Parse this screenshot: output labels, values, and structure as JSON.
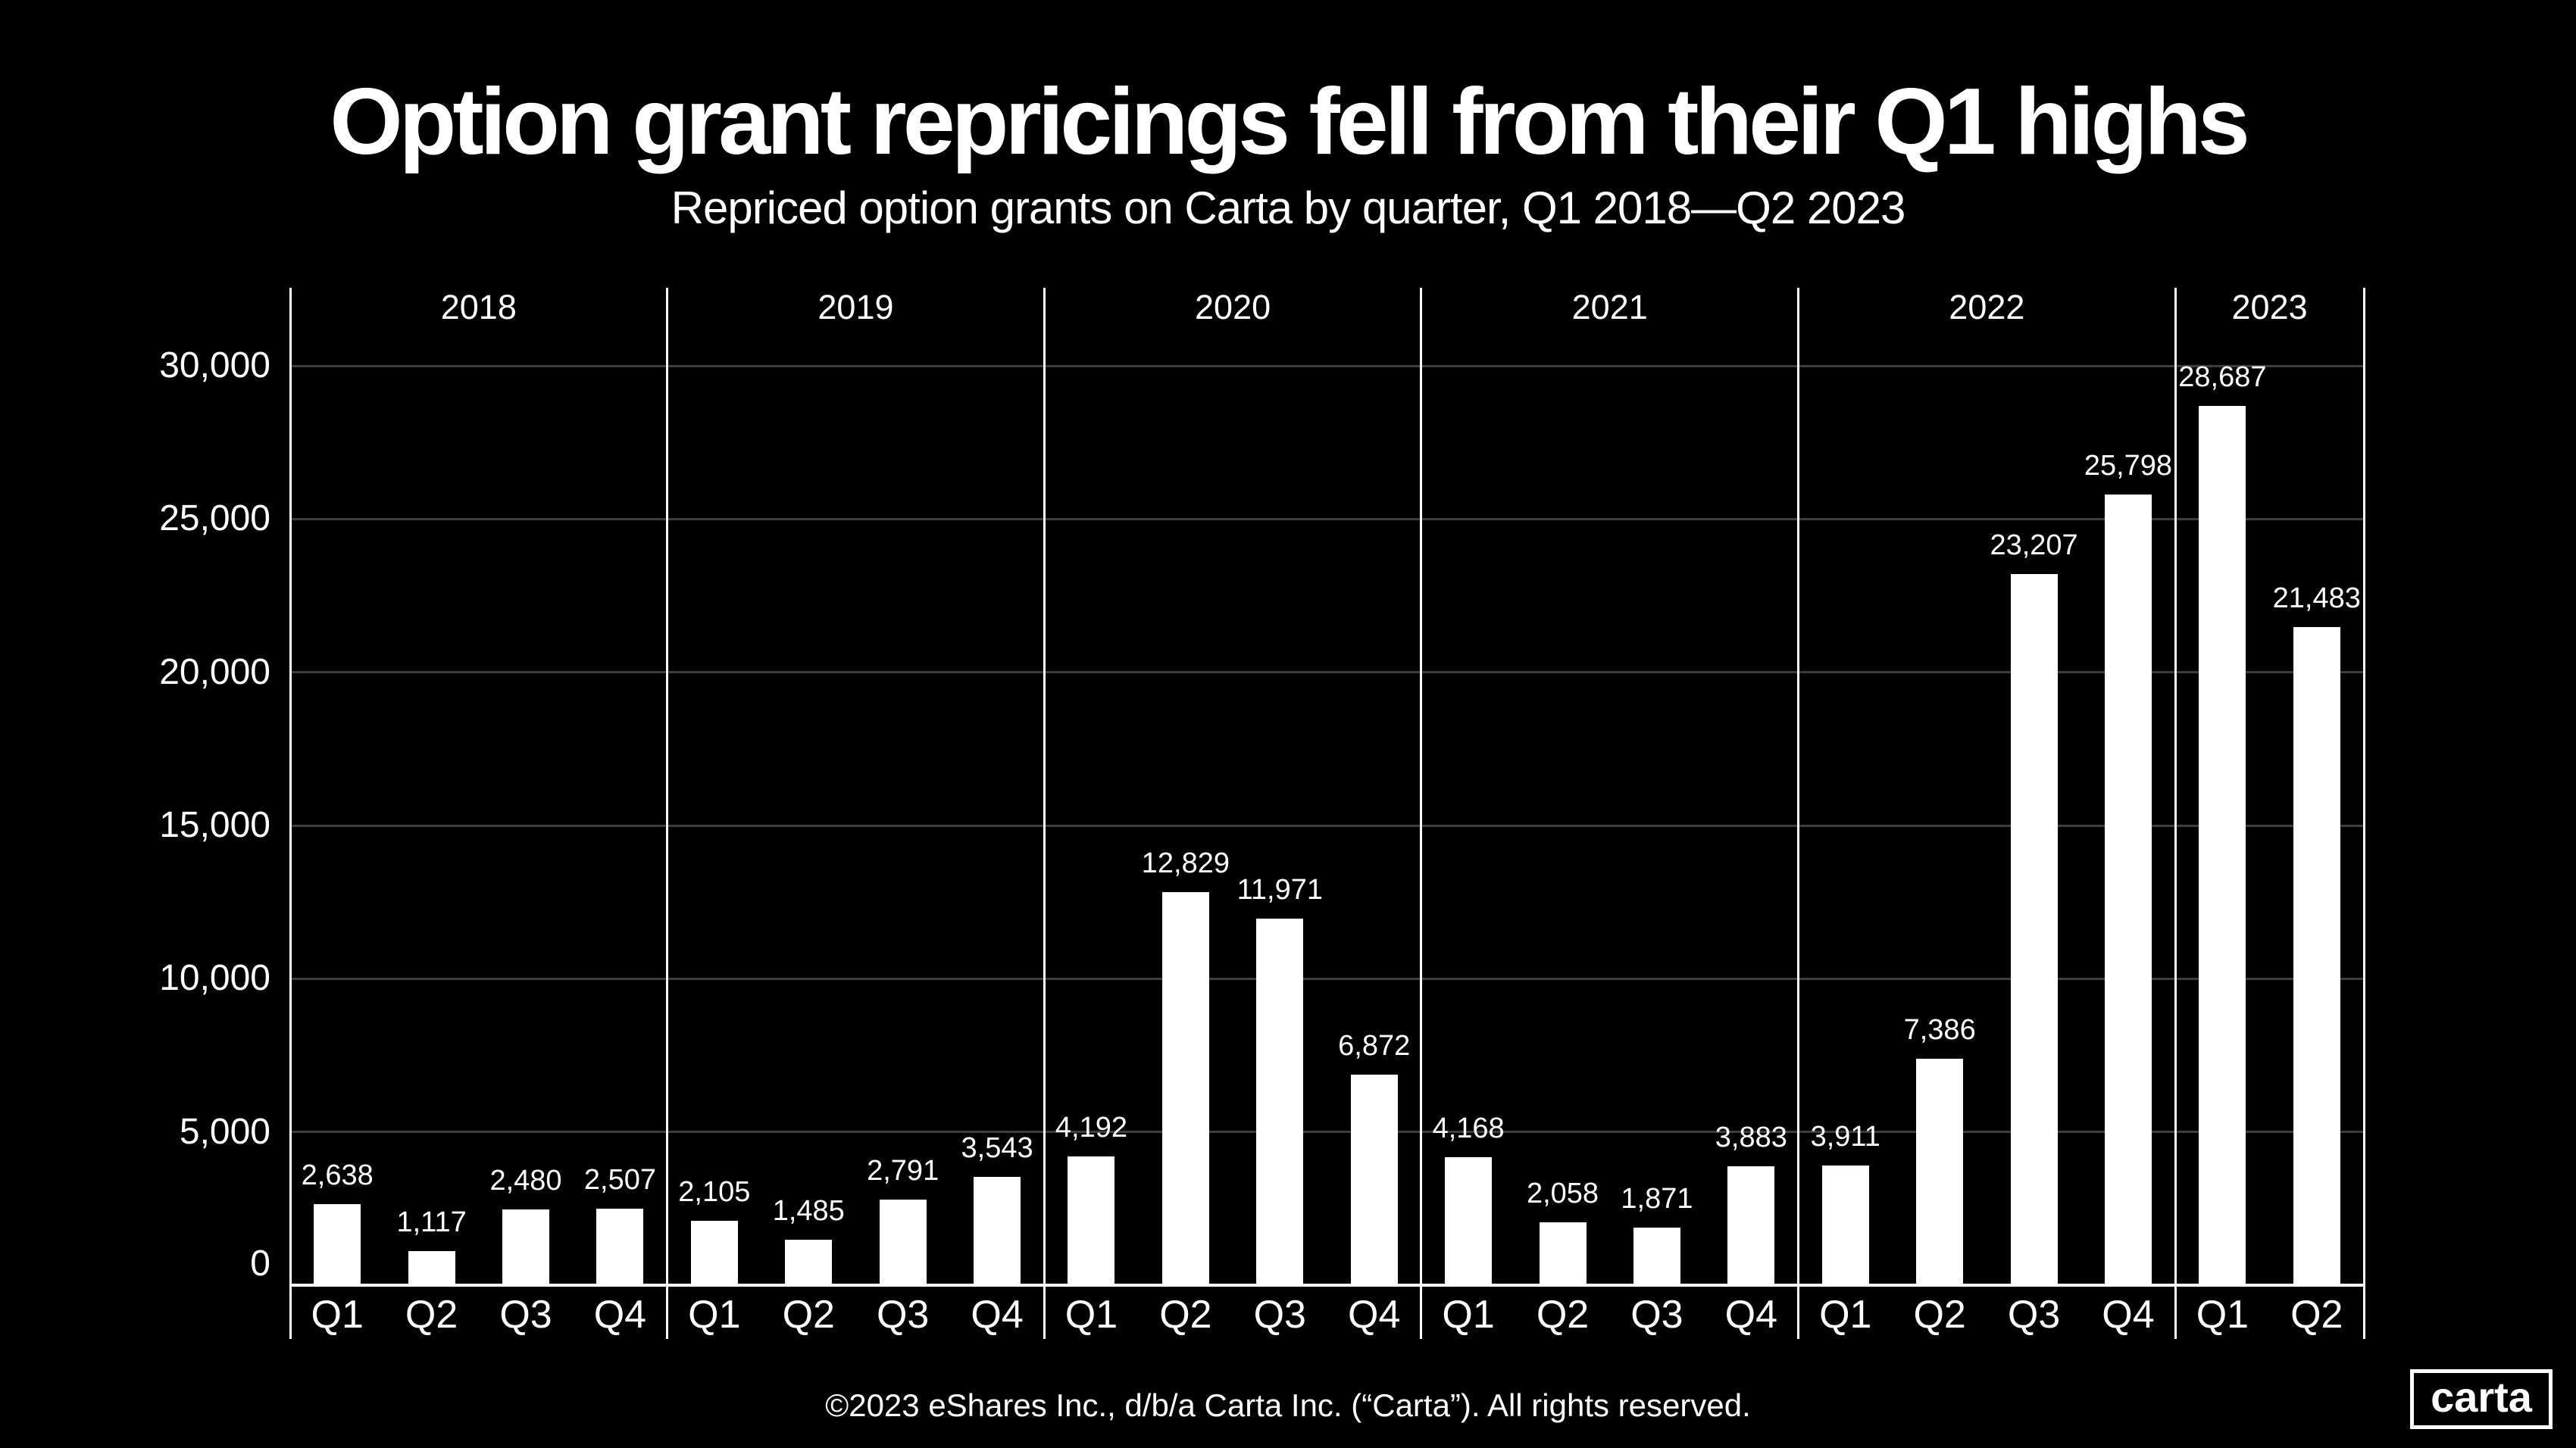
{
  "page": {
    "title": "Option grant repricings fell from their Q1 highs",
    "subtitle": "Repriced option grants on Carta by quarter, Q1 2018—Q2 2023",
    "footer": "©2023 eShares Inc., d/b/a Carta Inc. (“Carta”). All rights reserved.",
    "logo_text": "carta"
  },
  "colors": {
    "background": "#000000",
    "bar": "#ffffff",
    "grid_line": "#3d3d3d",
    "axis_line": "#ffffff",
    "text": "#ffffff"
  },
  "chart_data": {
    "type": "bar",
    "title": "Option grant repricings fell from their Q1 highs",
    "subtitle": "Repriced option grants on Carta by quarter, Q1 2018—Q2 2023",
    "xlabel": "",
    "ylabel": "",
    "ylim": [
      0,
      30000
    ],
    "yticks": [
      0,
      5000,
      10000,
      15000,
      20000,
      25000,
      30000
    ],
    "ytick_labels": [
      "0",
      "5,000",
      "10,000",
      "15,000",
      "20,000",
      "25,000",
      "30,000"
    ],
    "grid": "horizontal",
    "legend": "none",
    "bar_color": "#ffffff",
    "groups": [
      {
        "year": "2018",
        "categories": [
          "Q1",
          "Q2",
          "Q3",
          "Q4"
        ],
        "values": [
          2638,
          1117,
          2480,
          2507
        ],
        "value_labels": [
          "2,638",
          "1,117",
          "2,480",
          "2,507"
        ]
      },
      {
        "year": "2019",
        "categories": [
          "Q1",
          "Q2",
          "Q3",
          "Q4"
        ],
        "values": [
          2105,
          1485,
          2791,
          3543
        ],
        "value_labels": [
          "2,105",
          "1,485",
          "2,791",
          "3,543"
        ]
      },
      {
        "year": "2020",
        "categories": [
          "Q1",
          "Q2",
          "Q3",
          "Q4"
        ],
        "values": [
          4192,
          12829,
          11971,
          6872
        ],
        "value_labels": [
          "4,192",
          "12,829",
          "11,971",
          "6,872"
        ]
      },
      {
        "year": "2021",
        "categories": [
          "Q1",
          "Q2",
          "Q3",
          "Q4"
        ],
        "values": [
          4168,
          2058,
          1871,
          3883
        ],
        "value_labels": [
          "4,168",
          "2,058",
          "1,871",
          "3,883"
        ]
      },
      {
        "year": "2022",
        "categories": [
          "Q1",
          "Q2",
          "Q3",
          "Q4"
        ],
        "values": [
          3911,
          7386,
          23207,
          25798
        ],
        "value_labels": [
          "3,911",
          "7,386",
          "23,207",
          "25,798"
        ]
      },
      {
        "year": "2023",
        "categories": [
          "Q1",
          "Q2"
        ],
        "values": [
          28687,
          21483
        ],
        "value_labels": [
          "28,687",
          "21,483"
        ]
      }
    ]
  }
}
